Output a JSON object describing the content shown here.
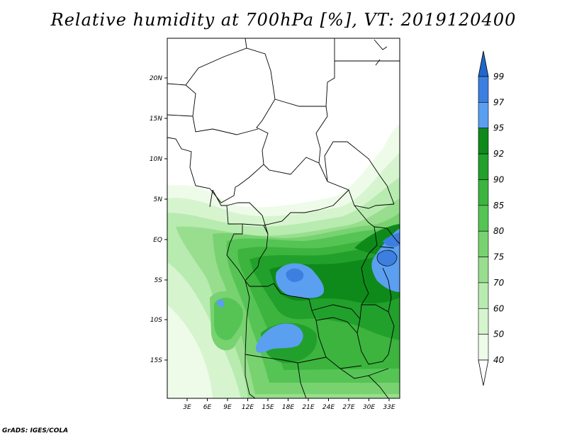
{
  "title": "Relative humidity at 700hPa [%], VT: 2019120400",
  "footer": "GrADS: IGES/COLA",
  "map": {
    "projection": "lat-lon",
    "lon_range": [
      0,
      35
    ],
    "lat_range": [
      -20,
      25
    ],
    "lat_labels": [
      "20N",
      "15N",
      "10N",
      "5N",
      "EQ",
      "5S",
      "10S",
      "15S"
    ],
    "lon_labels": [
      "3E",
      "6E",
      "9E",
      "12E",
      "15E",
      "18E",
      "21E",
      "24E",
      "27E",
      "30E",
      "33E"
    ]
  },
  "colorbar": {
    "labels": [
      "99",
      "97",
      "95",
      "92",
      "90",
      "85",
      "80",
      "75",
      "70",
      "60",
      "50",
      "40"
    ],
    "colors": [
      "#2266cc",
      "#3d7fe0",
      "#5b9ff0",
      "#0e8a1a",
      "#22a02c",
      "#3cb43e",
      "#55c455",
      "#78d270",
      "#98de8e",
      "#b8ebb0",
      "#d6f5cf",
      "#eefbe9",
      "#ffffff"
    ]
  },
  "fill_colors": {
    "lvl40": "#eefbe9",
    "lvl50": "#d6f5cf",
    "lvl60": "#b8ebb0",
    "lvl70": "#98de8e",
    "lvl75": "#78d270",
    "lvl80": "#55c455",
    "lvl85": "#3cb43e",
    "lvl90": "#22a02c",
    "lvl92": "#0e8a1a",
    "lvl95": "#5b9ff0",
    "lvl97": "#3d7fe0"
  }
}
